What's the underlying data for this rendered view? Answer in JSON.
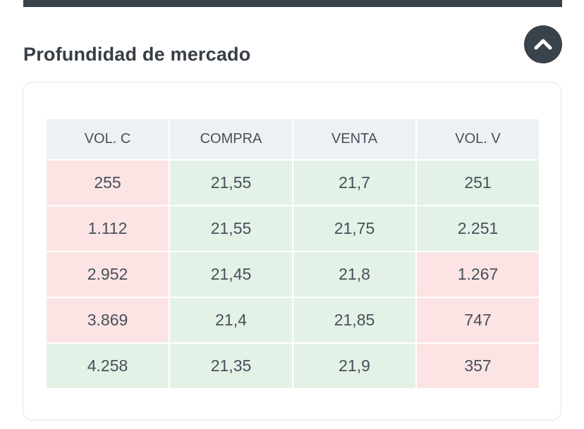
{
  "header": {
    "title": "Profundidad de mercado",
    "collapse_button": {
      "icon": "chevron-up"
    }
  },
  "colors": {
    "accent_dark": "#3a424b",
    "pink": "#fbe4e3",
    "green": "#e3f1e6",
    "header_bg": "#eef1f4",
    "text": "#47505b",
    "card_border": "#e2e5ea"
  },
  "table": {
    "columns": [
      "VOL. C",
      "COMPRA",
      "VENTA",
      "VOL. V"
    ],
    "rows": [
      {
        "cells": [
          {
            "value": "255",
            "tone": "pink"
          },
          {
            "value": "21,55",
            "tone": "green"
          },
          {
            "value": "21,7",
            "tone": "green"
          },
          {
            "value": "251",
            "tone": "green"
          }
        ]
      },
      {
        "cells": [
          {
            "value": "1.112",
            "tone": "pink"
          },
          {
            "value": "21,55",
            "tone": "green"
          },
          {
            "value": "21,75",
            "tone": "green"
          },
          {
            "value": "2.251",
            "tone": "green"
          }
        ]
      },
      {
        "cells": [
          {
            "value": "2.952",
            "tone": "pink"
          },
          {
            "value": "21,45",
            "tone": "green"
          },
          {
            "value": "21,8",
            "tone": "green"
          },
          {
            "value": "1.267",
            "tone": "pink"
          }
        ]
      },
      {
        "cells": [
          {
            "value": "3.869",
            "tone": "pink"
          },
          {
            "value": "21,4",
            "tone": "green"
          },
          {
            "value": "21,85",
            "tone": "green"
          },
          {
            "value": "747",
            "tone": "pink"
          }
        ]
      },
      {
        "cells": [
          {
            "value": "4.258",
            "tone": "green"
          },
          {
            "value": "21,35",
            "tone": "green"
          },
          {
            "value": "21,9",
            "tone": "green"
          },
          {
            "value": "357",
            "tone": "pink"
          }
        ]
      }
    ]
  }
}
